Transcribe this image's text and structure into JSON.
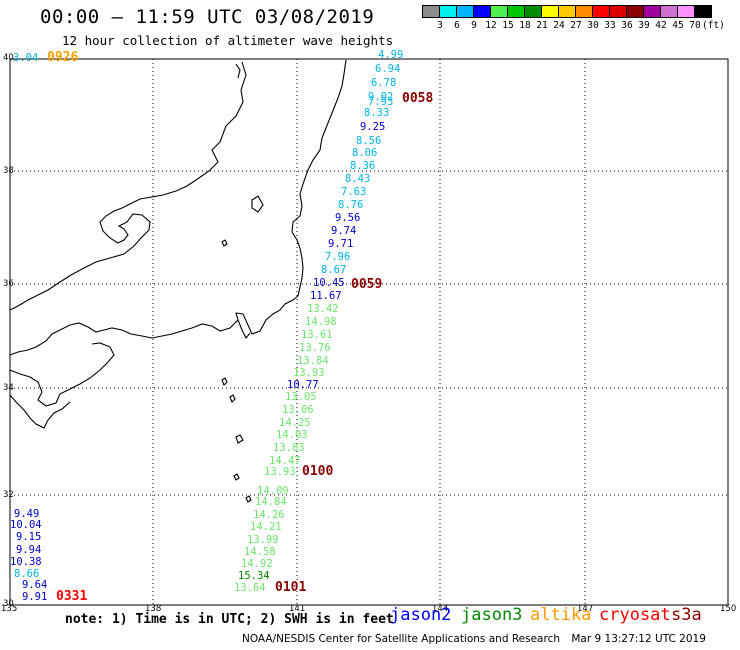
{
  "header": {
    "title": "00:00 – 11:59 UTC 03/08/2019",
    "subtitle": "12 hour collection of altimeter wave heights"
  },
  "scale": {
    "colors": [
      "#8c8c8c",
      "#00f0f0",
      "#00b4ff",
      "#0000ff",
      "#50f050",
      "#00c800",
      "#008c00",
      "#ffff00",
      "#ffc800",
      "#ff8c00",
      "#ff0000",
      "#dc0000",
      "#8c0000",
      "#a000a0",
      "#d070d0",
      "#ff90ff",
      "#000000"
    ],
    "labels": [
      "3",
      "6",
      "9",
      "12",
      "15",
      "18",
      "21",
      "24",
      "27",
      "30",
      "33",
      "36",
      "39",
      "42",
      "45",
      "70",
      "(ft)"
    ]
  },
  "axes": {
    "lat_labels": [
      "40",
      "38",
      "36",
      "34",
      "32",
      "30"
    ],
    "lon_labels": [
      "135",
      "138",
      "141",
      "144",
      "147",
      "150"
    ]
  },
  "timestamps": [
    {
      "text": "0926",
      "color": "#f5a100"
    },
    {
      "text": "0058",
      "color": "#8b0000"
    },
    {
      "text": "0059",
      "color": "#8b0000"
    },
    {
      "text": "0100",
      "color": "#8b0000"
    },
    {
      "text": "0101",
      "color": "#8b0000"
    },
    {
      "text": "0331",
      "color": "#ff0000"
    }
  ],
  "tracks": {
    "corner": {
      "text": "3.04",
      "color": "#00b4e6"
    },
    "jason3_north": [
      {
        "v": "4.99",
        "c": "#00b4e6"
      },
      {
        "v": "6.94",
        "c": "#00b4e6"
      },
      {
        "v": "6.78",
        "c": "#00b4e6"
      },
      {
        "v": "9.02",
        "c": "#00b4e6"
      },
      {
        "v": "7.93",
        "c": "#00b4e6"
      },
      {
        "v": "8.33",
        "c": "#00b4e6"
      },
      {
        "v": "9.25",
        "c": "#0000c8"
      },
      {
        "v": "8.56",
        "c": "#00b4e6"
      },
      {
        "v": "8.06",
        "c": "#00b4e6"
      },
      {
        "v": "8.36",
        "c": "#00b4e6"
      },
      {
        "v": "8.43",
        "c": "#00b4e6"
      },
      {
        "v": "7.63",
        "c": "#00b4e6"
      },
      {
        "v": "8.76",
        "c": "#00b4e6"
      },
      {
        "v": "9.56",
        "c": "#0000c8"
      },
      {
        "v": "9.74",
        "c": "#0000c8"
      },
      {
        "v": "9.71",
        "c": "#0000c8"
      },
      {
        "v": "7.96",
        "c": "#00b4e6"
      },
      {
        "v": "8.67",
        "c": "#00b4e6"
      },
      {
        "v": "10.45",
        "c": "#0000c8"
      },
      {
        "v": "11.67",
        "c": "#0000c8"
      }
    ],
    "jason3_south": [
      {
        "v": "13.42",
        "c": "#6ce66c"
      },
      {
        "v": "14.98",
        "c": "#6ce66c"
      },
      {
        "v": "13.61",
        "c": "#6ce66c"
      },
      {
        "v": "13.76",
        "c": "#6ce66c"
      },
      {
        "v": "13.84",
        "c": "#6ce66c"
      },
      {
        "v": "13.93",
        "c": "#6ce66c"
      },
      {
        "v": "10.77",
        "c": "#0000c8"
      },
      {
        "v": "13.05",
        "c": "#6ce66c"
      },
      {
        "v": "13.06",
        "c": "#6ce66c"
      },
      {
        "v": "14.25",
        "c": "#6ce66c"
      },
      {
        "v": "14.03",
        "c": "#6ce66c"
      },
      {
        "v": "13.83",
        "c": "#6ce66c"
      },
      {
        "v": "14.47",
        "c": "#6ce66c"
      },
      {
        "v": "13.93",
        "c": "#6ce66c"
      }
    ],
    "jason3_bottom": [
      {
        "v": "14.09",
        "c": "#6ce66c"
      },
      {
        "v": "14.84",
        "c": "#6ce66c"
      },
      {
        "v": "14.26",
        "c": "#6ce66c"
      },
      {
        "v": "14.21",
        "c": "#6ce66c"
      },
      {
        "v": "13.99",
        "c": "#6ce66c"
      },
      {
        "v": "14.58",
        "c": "#6ce66c"
      },
      {
        "v": "14.92",
        "c": "#6ce66c"
      },
      {
        "v": "15.34",
        "c": "#008c00"
      },
      {
        "v": "13.64",
        "c": "#6ce66c"
      }
    ],
    "cryosat_left": [
      {
        "v": "9.49",
        "c": "#0000c8"
      },
      {
        "v": "10.04",
        "c": "#0000c8"
      },
      {
        "v": "9.15",
        "c": "#0000c8"
      },
      {
        "v": "9.94",
        "c": "#0000c8"
      },
      {
        "v": "10.38",
        "c": "#0000c8"
      },
      {
        "v": "8.66",
        "c": "#00b4e6"
      },
      {
        "v": "9.64",
        "c": "#0000c8"
      },
      {
        "v": "9.91",
        "c": "#0000c8"
      }
    ]
  },
  "note": "note: 1) Time is in UTC; 2) SWH is in feet",
  "satellites": [
    {
      "name": "jason2",
      "color": "#0000ff"
    },
    {
      "name": "jason3",
      "color": "#008c00"
    },
    {
      "name": "altika",
      "color": "#ff9900"
    },
    {
      "name": "cryosat",
      "color": "#ff0000"
    },
    {
      "name": "s3a",
      "color": "#8b0000"
    }
  ],
  "footer": {
    "org": "NOAA/NESDIS Center for Satellite Applications and Research",
    "date": "Mar  9 13:27:12 UTC 2019"
  }
}
